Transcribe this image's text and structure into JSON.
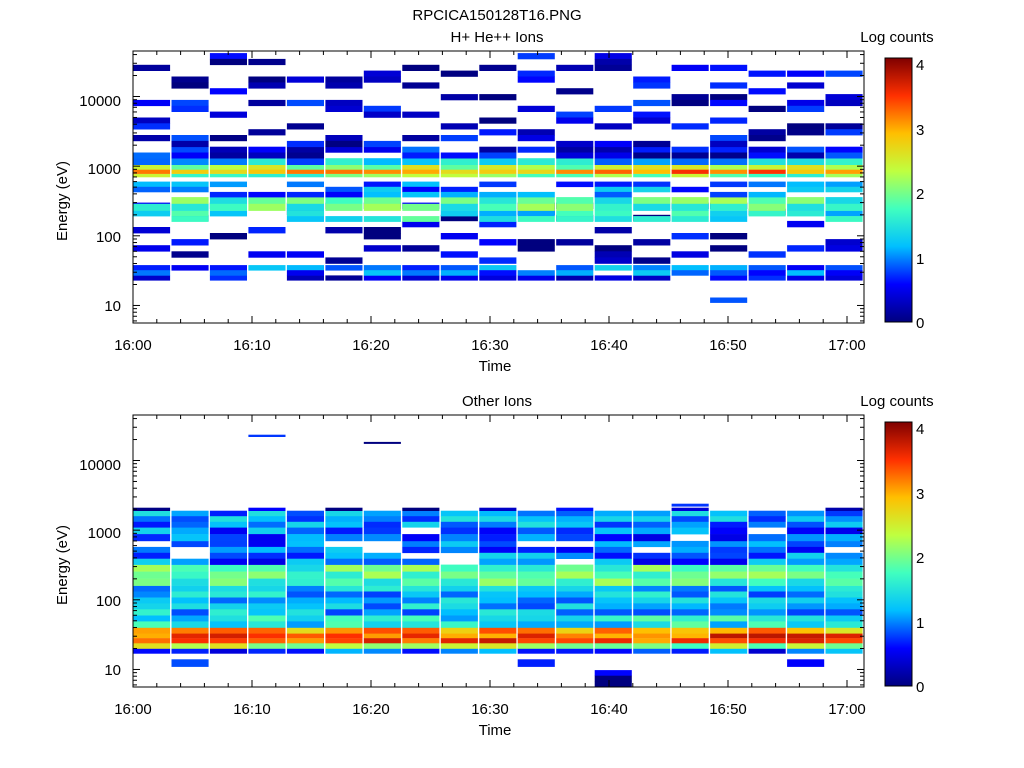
{
  "figure_title": "RPCICA150128T16.PNG",
  "colormap": [
    "#00007f",
    "#0000ff",
    "#00bfff",
    "#40ffbf",
    "#bfff40",
    "#ffbf00",
    "#ff3000",
    "#7f0000"
  ],
  "chart_data": [
    {
      "type": "heatmap",
      "title": "H+ He++ Ions",
      "xlabel": "Time",
      "ylabel": "Energy (eV)",
      "x_ticks": [
        "16:00",
        "16:10",
        "16:20",
        "16:30",
        "16:40",
        "16:50",
        "17:00"
      ],
      "x_range_minutes": [
        0,
        61.5
      ],
      "y_scale": "log",
      "y_ticks": [
        "10",
        "100",
        "1000",
        "10000"
      ],
      "y_range": [
        5.6,
        45000
      ],
      "colorbar": {
        "label": "Log counts",
        "range": [
          0,
          4.1
        ],
        "ticks": [
          "0",
          "1",
          "2",
          "3",
          "4"
        ]
      },
      "time_bins": 19,
      "bands": [
        {
          "e_lo": 9.8,
          "e_hi": 11,
          "cols": [
            false,
            false,
            false,
            false,
            false,
            false,
            false,
            false,
            false,
            false,
            false,
            false,
            false,
            false,
            false,
            false,
            false,
            false,
            false
          ],
          "level": 0.1,
          "spec": {
            "16": 0.1
          }
        },
        {
          "e_lo": 11,
          "e_hi": 13,
          "cols": [
            false,
            false,
            false,
            false,
            false,
            false,
            false,
            false,
            false,
            false,
            false,
            false,
            false,
            false,
            false,
            true,
            false,
            false,
            false
          ],
          "level": 0.4,
          "spec": {
            "16": 0.1
          }
        },
        {
          "e_lo": 23,
          "e_hi": 27,
          "level": 0.4,
          "density": 0.8
        },
        {
          "e_lo": 27,
          "e_hi": 38,
          "level": 0.9,
          "density": 0.9
        },
        {
          "e_lo": 40,
          "e_hi": 300,
          "level": 0.3,
          "density": 0.3
        },
        {
          "e_lo": 160,
          "e_hi": 230,
          "level": 1.5,
          "density": 0.8
        },
        {
          "e_lo": 230,
          "e_hi": 360,
          "level": 1.8,
          "density": 0.9
        },
        {
          "e_lo": 360,
          "e_hi": 600,
          "level": 1.0,
          "density": 0.6
        },
        {
          "e_lo": 700,
          "e_hi": 780,
          "level": 2.0,
          "density": 1.0
        },
        {
          "e_lo": 780,
          "e_hi": 900,
          "level": 3.1,
          "density": 1.0
        },
        {
          "e_lo": 900,
          "e_hi": 1050,
          "level": 2.2,
          "density": 1.0
        },
        {
          "e_lo": 1050,
          "e_hi": 1300,
          "level": 1.2,
          "density": 1.0
        },
        {
          "e_lo": 1300,
          "e_hi": 1900,
          "level": 0.5,
          "density": 0.9
        },
        {
          "e_lo": 1900,
          "e_hi": 42000,
          "level": 0.4,
          "density": 0.33
        }
      ]
    },
    {
      "type": "heatmap",
      "title": "Other Ions",
      "xlabel": "Time",
      "ylabel": "Energy (eV)",
      "x_ticks": [
        "16:00",
        "16:10",
        "16:20",
        "16:30",
        "16:40",
        "16:50",
        "17:00"
      ],
      "x_range_minutes": [
        0,
        61.5
      ],
      "y_scale": "log",
      "y_ticks": [
        "10",
        "100",
        "1000",
        "10000"
      ],
      "y_range": [
        5.6,
        45000
      ],
      "colorbar": {
        "label": "Log counts",
        "range": [
          0,
          4.1
        ],
        "ticks": [
          "0",
          "1",
          "2",
          "3",
          "4"
        ]
      },
      "time_bins": 19,
      "bands": [
        {
          "e_lo": 5.6,
          "e_hi": 9.8,
          "cols": [
            false,
            false,
            false,
            false,
            false,
            false,
            false,
            false,
            false,
            false,
            false,
            false,
            true,
            false,
            false,
            false,
            false,
            false,
            false
          ],
          "level": 0.2,
          "density": 1.0
        },
        {
          "e_lo": 11,
          "e_hi": 14,
          "cols": [
            false,
            true,
            false,
            false,
            false,
            false,
            false,
            false,
            false,
            false,
            true,
            false,
            false,
            false,
            false,
            false,
            false,
            true,
            false
          ],
          "level": 0.4,
          "density": 1.0
        },
        {
          "e_lo": 17,
          "e_hi": 20,
          "level": 0.8,
          "density": 1.0
        },
        {
          "e_lo": 20,
          "e_hi": 24,
          "level": 2.2,
          "density": 1.0
        },
        {
          "e_lo": 24,
          "e_hi": 33,
          "level": 3.4,
          "density": 1.0
        },
        {
          "e_lo": 33,
          "e_hi": 40,
          "level": 3.0,
          "density": 1.0
        },
        {
          "e_lo": 40,
          "e_hi": 60,
          "level": 1.5,
          "density": 1.0
        },
        {
          "e_lo": 60,
          "e_hi": 160,
          "level": 1.2,
          "density": 1.0
        },
        {
          "e_lo": 160,
          "e_hi": 320,
          "level": 1.8,
          "density": 1.0
        },
        {
          "e_lo": 320,
          "e_hi": 700,
          "level": 0.9,
          "density": 0.8
        },
        {
          "e_lo": 700,
          "e_hi": 1100,
          "level": 0.9,
          "density": 0.9
        },
        {
          "e_lo": 1100,
          "e_hi": 1900,
          "level": 1.1,
          "density": 1.0
        },
        {
          "e_lo": 1900,
          "e_hi": 2100,
          "level": 0.3,
          "density": 0.5
        },
        {
          "e_lo": 2200,
          "e_hi": 2400,
          "cols": [
            false,
            false,
            false,
            false,
            false,
            false,
            false,
            false,
            false,
            false,
            false,
            false,
            false,
            false,
            true,
            false,
            false,
            false,
            false
          ],
          "level": 0.3,
          "density": 1.0
        },
        {
          "e_lo": 17500,
          "e_hi": 18500,
          "cols": [
            false,
            false,
            false,
            false,
            false,
            false,
            true,
            false,
            false,
            false,
            false,
            false,
            false,
            false,
            false,
            false,
            false,
            false,
            false
          ],
          "level": 0.4,
          "density": 1.0
        },
        {
          "e_lo": 22000,
          "e_hi": 23500,
          "cols": [
            false,
            false,
            false,
            true,
            false,
            false,
            false,
            false,
            false,
            false,
            false,
            false,
            false,
            false,
            false,
            false,
            false,
            false,
            false
          ],
          "level": 0.4,
          "density": 1.0
        }
      ]
    }
  ]
}
